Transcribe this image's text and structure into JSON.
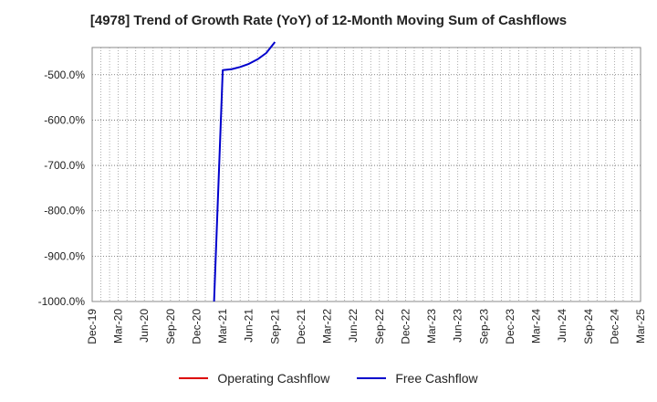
{
  "chart_data": {
    "type": "line",
    "title": "[4978]  Trend of Growth Rate (YoY) of 12-Month Moving Sum of Cashflows",
    "xlabel": "",
    "ylabel": "",
    "x_ticks": [
      "Dec-19",
      "Mar-20",
      "Jun-20",
      "Sep-20",
      "Dec-20",
      "Mar-21",
      "Jun-21",
      "Sep-21",
      "Dec-21",
      "Mar-22",
      "Jun-22",
      "Sep-22",
      "Dec-22",
      "Mar-23",
      "Jun-23",
      "Sep-23",
      "Dec-23",
      "Mar-24",
      "Jun-24",
      "Sep-24",
      "Dec-24",
      "Mar-25"
    ],
    "y_ticks": [
      "-500.0%",
      "-600.0%",
      "-700.0%",
      "-800.0%",
      "-900.0%",
      "-1000.0%"
    ],
    "ylim": [
      -1000,
      -440
    ],
    "grid": true,
    "legend_position": "bottom",
    "series": [
      {
        "name": "Operating Cashflow",
        "color": "#dd0000",
        "points": []
      },
      {
        "name": "Free Cashflow",
        "color": "#0000cc",
        "points": [
          [
            "Feb-21",
            -1000
          ],
          [
            "Mar-21",
            -490
          ],
          [
            "Apr-21",
            -488
          ],
          [
            "May-21",
            -483
          ],
          [
            "Jun-21",
            -476
          ],
          [
            "Jul-21",
            -466
          ],
          [
            "Aug-21",
            -452
          ],
          [
            "Sep-21",
            -428
          ]
        ]
      }
    ]
  }
}
